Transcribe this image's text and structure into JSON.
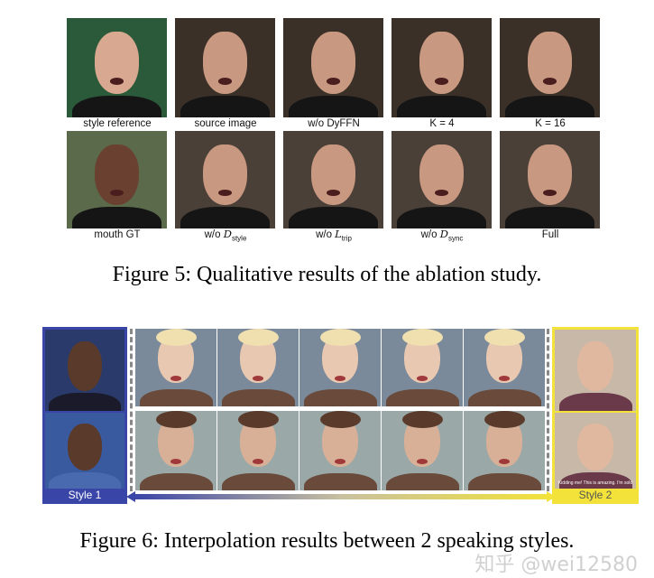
{
  "figure5": {
    "row1_labels": [
      "style reference",
      "source image",
      "w/o DyFFN",
      "K = 4",
      "K = 16"
    ],
    "row2_labels": [
      {
        "pre": "mouth GT",
        "sym": "",
        "sub": ""
      },
      {
        "pre": "w/o ",
        "sym": "D",
        "sub": "style"
      },
      {
        "pre": "w/o ",
        "sym": "L",
        "sub": "trip"
      },
      {
        "pre": "w/o ",
        "sym": "D",
        "sub": "sync"
      },
      {
        "pre": "Full",
        "sym": "",
        "sub": ""
      }
    ],
    "caption": "Figure 5: Qualitative results of the ablation study."
  },
  "figure6": {
    "style1_label": "Style 1",
    "style2_label": "Style 2",
    "subtitle_in_frame": "Kidding me! This is amazing. I'm sold",
    "caption": "Figure 6: Interpolation results between 2 speaking styles.",
    "colors": {
      "style1": "#3a45a8",
      "style2": "#f2e23a"
    }
  },
  "watermark": "知乎 @wei12580"
}
